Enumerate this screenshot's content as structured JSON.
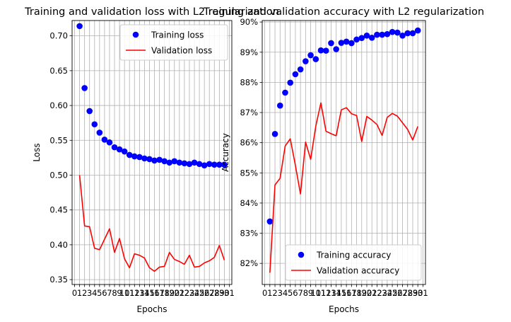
{
  "chart_data": [
    {
      "type": "line",
      "title": "Training and validation loss with L2 regularization",
      "xlabel": "Epochs",
      "ylabel": "Loss",
      "xlim": [
        -0.5,
        31.5
      ],
      "ylim": [
        0.343,
        0.722
      ],
      "yticks": [
        0.35,
        0.4,
        0.45,
        0.5,
        0.55,
        0.6,
        0.65,
        0.7
      ],
      "ytick_labels": [
        "0.35",
        "0.40",
        "0.45",
        "0.50",
        "0.55",
        "0.60",
        "0.65",
        "0.70"
      ],
      "xticks": [
        0,
        1,
        2,
        3,
        4,
        5,
        6,
        7,
        8,
        9,
        10,
        11,
        12,
        13,
        14,
        15,
        16,
        17,
        18,
        19,
        20,
        21,
        22,
        23,
        24,
        25,
        26,
        27,
        28,
        29,
        30,
        31
      ],
      "xtick_labels": [
        "0",
        "1",
        "2",
        "3",
        "4",
        "5",
        "6",
        "7",
        "8",
        "9",
        "10",
        "11",
        "12",
        "13",
        "14",
        "15",
        "16",
        "17",
        "18",
        "19",
        "20",
        "21",
        "22",
        "23",
        "24",
        "25",
        "26",
        "27",
        "28",
        "29",
        "30",
        "31"
      ],
      "grid": true,
      "legend": "top-right",
      "series": [
        {
          "name": "Training loss",
          "style": "markers",
          "color": "#0000ff",
          "x": [
            1,
            2,
            3,
            4,
            5,
            6,
            7,
            8,
            9,
            10,
            11,
            12,
            13,
            14,
            15,
            16,
            17,
            18,
            19,
            20,
            21,
            22,
            23,
            24,
            25,
            26,
            27,
            28,
            29,
            30
          ],
          "values": [
            0.714,
            0.625,
            0.592,
            0.573,
            0.561,
            0.551,
            0.547,
            0.54,
            0.537,
            0.534,
            0.529,
            0.527,
            0.526,
            0.524,
            0.523,
            0.521,
            0.522,
            0.52,
            0.518,
            0.52,
            0.518,
            0.517,
            0.516,
            0.518,
            0.516,
            0.514,
            0.516,
            0.515,
            0.515,
            0.515
          ]
        },
        {
          "name": "Validation loss",
          "style": "line",
          "color": "#ff0000",
          "x": [
            1,
            2,
            3,
            4,
            5,
            6,
            7,
            8,
            9,
            10,
            11,
            12,
            13,
            14,
            15,
            16,
            17,
            18,
            19,
            20,
            21,
            22,
            23,
            24,
            25,
            26,
            27,
            28,
            29,
            30
          ],
          "values": [
            0.5,
            0.427,
            0.426,
            0.395,
            0.393,
            0.408,
            0.423,
            0.389,
            0.409,
            0.38,
            0.367,
            0.387,
            0.385,
            0.381,
            0.367,
            0.362,
            0.368,
            0.369,
            0.389,
            0.379,
            0.376,
            0.372,
            0.385,
            0.368,
            0.369,
            0.374,
            0.377,
            0.382,
            0.399,
            0.378
          ]
        }
      ]
    },
    {
      "type": "line",
      "title": "Training and validation accuracy with L2 regularization",
      "xlabel": "Epochs",
      "ylabel": "Accuracy",
      "xlim": [
        -0.5,
        31.5
      ],
      "ylim": [
        0.813,
        0.9005
      ],
      "yticks": [
        0.82,
        0.83,
        0.84,
        0.85,
        0.86,
        0.87,
        0.88,
        0.89,
        0.9
      ],
      "ytick_labels": [
        "82%",
        "83%",
        "84%",
        "85%",
        "86%",
        "87%",
        "88%",
        "89%",
        "90%"
      ],
      "xticks": [
        0,
        1,
        2,
        3,
        4,
        5,
        6,
        7,
        8,
        9,
        10,
        11,
        12,
        13,
        14,
        15,
        16,
        17,
        18,
        19,
        20,
        21,
        22,
        23,
        24,
        25,
        26,
        27,
        28,
        29,
        30,
        31
      ],
      "xtick_labels": [
        "0",
        "1",
        "2",
        "3",
        "4",
        "5",
        "6",
        "7",
        "8",
        "9",
        "10",
        "11",
        "12",
        "13",
        "14",
        "15",
        "16",
        "17",
        "18",
        "19",
        "20",
        "21",
        "22",
        "23",
        "24",
        "25",
        "26",
        "27",
        "28",
        "29",
        "30",
        "31"
      ],
      "grid": true,
      "legend": "bottom-right",
      "series": [
        {
          "name": "Training accuracy",
          "style": "markers",
          "color": "#0000ff",
          "x": [
            1,
            2,
            3,
            4,
            5,
            6,
            7,
            8,
            9,
            10,
            11,
            12,
            13,
            14,
            15,
            16,
            17,
            18,
            19,
            20,
            21,
            22,
            23,
            24,
            25,
            26,
            27,
            28,
            29,
            30
          ],
          "values": [
            0.8339,
            0.8629,
            0.8723,
            0.8766,
            0.8799,
            0.8827,
            0.8843,
            0.887,
            0.889,
            0.8877,
            0.8906,
            0.8905,
            0.893,
            0.891,
            0.8931,
            0.8935,
            0.893,
            0.8942,
            0.8947,
            0.8955,
            0.8948,
            0.8958,
            0.8958,
            0.896,
            0.8967,
            0.8965,
            0.8955,
            0.8963,
            0.8963,
            0.8972
          ]
        },
        {
          "name": "Validation accuracy",
          "style": "line",
          "color": "#ff0000",
          "x": [
            1,
            2,
            3,
            4,
            5,
            6,
            7,
            8,
            9,
            10,
            11,
            12,
            13,
            14,
            15,
            16,
            17,
            18,
            19,
            20,
            21,
            22,
            23,
            24,
            25,
            26,
            27,
            28,
            29,
            30
          ],
          "values": [
            0.8169,
            0.846,
            0.8482,
            0.8589,
            0.8613,
            0.8525,
            0.843,
            0.8602,
            0.8545,
            0.8655,
            0.8732,
            0.8638,
            0.863,
            0.8623,
            0.8709,
            0.8716,
            0.8696,
            0.869,
            0.8604,
            0.8687,
            0.8675,
            0.866,
            0.8624,
            0.8684,
            0.8697,
            0.8688,
            0.8666,
            0.8644,
            0.8609,
            0.8654
          ]
        }
      ]
    }
  ]
}
